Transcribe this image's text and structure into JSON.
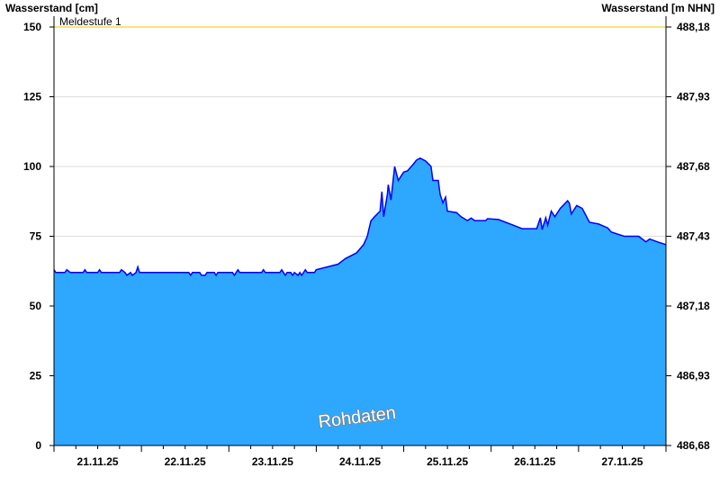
{
  "chart_data": {
    "type": "area",
    "ylabel_left": "Wasserstand [cm]",
    "ylabel_right": "Wasserstand [m NHN]",
    "ylim": [
      0,
      150
    ],
    "yticks_left": [
      "0",
      "25",
      "50",
      "75",
      "100",
      "125",
      "150"
    ],
    "yticks_right": [
      "486,68",
      "486,93",
      "487,18",
      "487,43",
      "487,68",
      "487,93",
      "488,18"
    ],
    "xlim": [
      "2025-11-21T00:00",
      "2025-11-28T00:00"
    ],
    "xtick_labels": [
      "21.11.25",
      "22.11.25",
      "23.11.25",
      "24.11.25",
      "25.11.25",
      "26.11.25",
      "27.11.25"
    ],
    "grid": true,
    "threshold": {
      "label": "Meldestufe 1",
      "value": 150,
      "color": "#f5c400"
    },
    "watermark": "Rohdaten",
    "fill_color": "#2ea8ff",
    "line_color": "#0000ff",
    "points": [
      [
        "2025-11-21T00:00",
        63
      ],
      [
        "2025-11-21T00:30",
        62
      ],
      [
        "2025-11-21T03:00",
        62
      ],
      [
        "2025-11-21T03:30",
        63
      ],
      [
        "2025-11-21T04:30",
        62
      ],
      [
        "2025-11-21T08:00",
        62
      ],
      [
        "2025-11-21T08:30",
        63
      ],
      [
        "2025-11-21T09:00",
        62
      ],
      [
        "2025-11-21T12:00",
        62
      ],
      [
        "2025-11-21T12:30",
        63
      ],
      [
        "2025-11-21T13:00",
        62
      ],
      [
        "2025-11-21T18:00",
        62
      ],
      [
        "2025-11-21T18:30",
        63
      ],
      [
        "2025-11-21T19:30",
        62
      ],
      [
        "2025-11-21T20:00",
        61
      ],
      [
        "2025-11-21T21:00",
        62
      ],
      [
        "2025-11-21T21:30",
        61
      ],
      [
        "2025-11-21T22:30",
        62
      ],
      [
        "2025-11-21T23:00",
        64
      ],
      [
        "2025-11-21T23:30",
        62
      ],
      [
        "2025-11-22T13:00",
        62
      ],
      [
        "2025-11-22T13:30",
        61
      ],
      [
        "2025-11-22T14:00",
        62
      ],
      [
        "2025-11-22T16:00",
        62
      ],
      [
        "2025-11-22T16:30",
        61
      ],
      [
        "2025-11-22T17:30",
        61
      ],
      [
        "2025-11-22T18:00",
        62
      ],
      [
        "2025-11-22T20:00",
        62
      ],
      [
        "2025-11-22T20:30",
        61
      ],
      [
        "2025-11-22T21:00",
        62
      ],
      [
        "2025-11-23T01:00",
        62
      ],
      [
        "2025-11-23T01:30",
        61
      ],
      [
        "2025-11-23T02:00",
        62
      ],
      [
        "2025-11-23T02:30",
        63
      ],
      [
        "2025-11-23T03:00",
        62
      ],
      [
        "2025-11-23T09:00",
        62
      ],
      [
        "2025-11-23T09:30",
        63
      ],
      [
        "2025-11-23T10:00",
        62
      ],
      [
        "2025-11-23T14:00",
        62
      ],
      [
        "2025-11-23T14:30",
        63
      ],
      [
        "2025-11-23T15:00",
        62
      ],
      [
        "2025-11-23T15:30",
        61
      ],
      [
        "2025-11-23T16:00",
        62
      ],
      [
        "2025-11-23T17:00",
        62
      ],
      [
        "2025-11-23T17:30",
        61
      ],
      [
        "2025-11-23T18:00",
        62
      ],
      [
        "2025-11-23T19:00",
        61
      ],
      [
        "2025-11-23T19:30",
        62
      ],
      [
        "2025-11-23T20:00",
        61
      ],
      [
        "2025-11-23T20:30",
        62
      ],
      [
        "2025-11-23T21:00",
        63
      ],
      [
        "2025-11-23T21:30",
        62
      ],
      [
        "2025-11-23T23:30",
        62
      ],
      [
        "2025-11-24T00:00",
        63
      ],
      [
        "2025-11-24T03:00",
        64
      ],
      [
        "2025-11-24T06:00",
        65
      ],
      [
        "2025-11-24T08:00",
        67
      ],
      [
        "2025-11-24T11:00",
        69
      ],
      [
        "2025-11-24T13:00",
        72
      ],
      [
        "2025-11-24T14:00",
        75
      ],
      [
        "2025-11-24T15:00",
        80.5
      ],
      [
        "2025-11-24T16:00",
        82
      ],
      [
        "2025-11-24T17:30",
        84
      ],
      [
        "2025-11-24T18:00",
        91
      ],
      [
        "2025-11-24T18:30",
        82
      ],
      [
        "2025-11-24T19:30",
        90
      ],
      [
        "2025-11-24T19:45",
        93.5
      ],
      [
        "2025-11-24T20:30",
        88
      ],
      [
        "2025-11-24T21:30",
        100
      ],
      [
        "2025-11-24T22:30",
        95
      ],
      [
        "2025-11-24T23:30",
        97
      ],
      [
        "2025-11-25T00:00",
        98
      ],
      [
        "2025-11-25T01:00",
        98.4
      ],
      [
        "2025-11-25T02:30",
        100.6
      ],
      [
        "2025-11-25T03:30",
        102.3
      ],
      [
        "2025-11-25T04:30",
        103
      ],
      [
        "2025-11-25T06:00",
        102
      ],
      [
        "2025-11-25T07:30",
        100
      ],
      [
        "2025-11-25T08:00",
        95
      ],
      [
        "2025-11-25T09:30",
        95
      ],
      [
        "2025-11-25T10:00",
        90
      ],
      [
        "2025-11-25T10:45",
        87
      ],
      [
        "2025-11-25T11:30",
        89
      ],
      [
        "2025-11-25T12:00",
        84
      ],
      [
        "2025-11-25T14:30",
        83.5
      ],
      [
        "2025-11-25T15:45",
        82
      ],
      [
        "2025-11-25T17:30",
        80.6
      ],
      [
        "2025-11-25T18:30",
        81.5
      ],
      [
        "2025-11-25T19:30",
        80.6
      ],
      [
        "2025-11-25T22:30",
        80.6
      ],
      [
        "2025-11-25T23:00",
        81.3
      ],
      [
        "2025-11-26T02:00",
        81
      ],
      [
        "2025-11-26T04:00",
        80
      ],
      [
        "2025-11-26T06:00",
        79
      ],
      [
        "2025-11-26T08:30",
        77.7
      ],
      [
        "2025-11-26T12:30",
        77.7
      ],
      [
        "2025-11-26T13:30",
        81.6
      ],
      [
        "2025-11-26T14:00",
        77.4
      ],
      [
        "2025-11-26T15:00",
        81.6
      ],
      [
        "2025-11-26T15:30",
        79
      ],
      [
        "2025-11-26T16:30",
        84
      ],
      [
        "2025-11-26T17:30",
        82
      ],
      [
        "2025-11-26T19:00",
        85
      ],
      [
        "2025-11-26T21:00",
        87.7
      ],
      [
        "2025-11-26T21:30",
        86.8
      ],
      [
        "2025-11-26T22:00",
        83
      ],
      [
        "2025-11-26T23:30",
        86
      ],
      [
        "2025-11-27T01:00",
        85
      ],
      [
        "2025-11-27T03:00",
        80
      ],
      [
        "2025-11-27T05:30",
        79.4
      ],
      [
        "2025-11-27T08:00",
        78
      ],
      [
        "2025-11-27T09:00",
        76.5
      ],
      [
        "2025-11-27T12:30",
        75
      ],
      [
        "2025-11-27T16:30",
        75
      ],
      [
        "2025-11-27T17:30",
        74
      ],
      [
        "2025-11-27T18:30",
        73
      ],
      [
        "2025-11-27T19:30",
        74
      ],
      [
        "2025-11-27T22:30",
        72.6
      ],
      [
        "2025-11-28T00:00",
        72
      ]
    ]
  }
}
